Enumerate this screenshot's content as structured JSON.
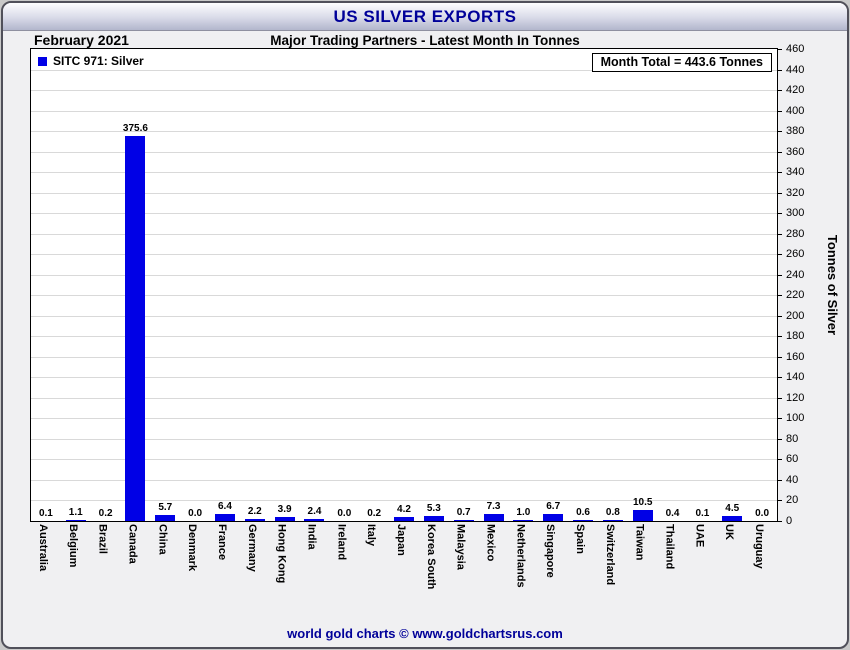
{
  "header": {
    "title": "US SILVER EXPORTS",
    "month": "February 2021",
    "subtitle": "Major Trading Partners - Latest Month In Tonnes"
  },
  "legend": {
    "label": "SITC 971: Silver"
  },
  "annotations": {
    "month_total": "Month Total = 443.6 Tonnes"
  },
  "footer": {
    "credit": "world gold charts © www.goldchartsrus.com"
  },
  "colors": {
    "bar": "#0000e6",
    "title_text": "#000099",
    "footer_text": "#000099",
    "plot_background": "#ffffff",
    "gridline": "#d9d9d9"
  },
  "chart_data": {
    "type": "bar",
    "title": "US SILVER EXPORTS",
    "subtitle": "Major Trading Partners - Latest Month In Tonnes",
    "period": "February 2021",
    "series_label": "SITC 971: Silver",
    "month_total_tonnes": 443.6,
    "ylabel": "Tonnes of Silver",
    "ylim": [
      0,
      460
    ],
    "ytick_step": 20,
    "grid": true,
    "legend_position": "top-left",
    "categories": [
      "Australia",
      "Belgium",
      "Brazil",
      "Canada",
      "China",
      "Denmark",
      "France",
      "Germany",
      "Hong Kong",
      "India",
      "Ireland",
      "Italy",
      "Japan",
      "Korea South",
      "Malaysia",
      "Mexico",
      "Netherlands",
      "Singapore",
      "Spain",
      "Switzerland",
      "Taiwan",
      "Thailand",
      "UAE",
      "UK",
      "Uruguay"
    ],
    "values": [
      0.1,
      1.1,
      0.2,
      375.6,
      5.7,
      0.0,
      6.4,
      2.2,
      3.9,
      2.4,
      0.0,
      0.2,
      4.2,
      5.3,
      0.7,
      7.3,
      1.0,
      6.7,
      0.6,
      0.8,
      10.5,
      0.4,
      0.1,
      4.5,
      0.0
    ]
  }
}
